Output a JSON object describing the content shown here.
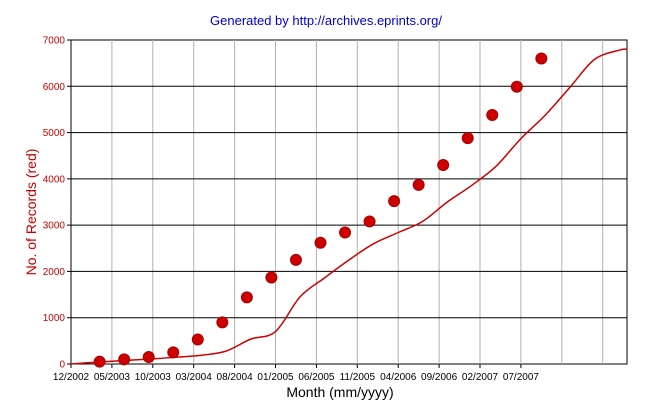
{
  "chart_data": {
    "type": "line",
    "title": "Generated by http://archives.eprints.org/",
    "xlabel": "Month (mm/yyyy)",
    "ylabel": "No. of Records (red)",
    "ylim": [
      0,
      7000
    ],
    "yticks": [
      0,
      1000,
      2000,
      3000,
      4000,
      5000,
      6000,
      7000
    ],
    "x_tick_labels": [
      "12/2002",
      "05/2003",
      "10/2003",
      "03/2004",
      "08/2004",
      "01/2005",
      "06/2005",
      "11/2005",
      "04/2006",
      "09/2006",
      "02/2007",
      "07/2007"
    ],
    "grid": true,
    "legend": "none",
    "line_color": "#cc0000",
    "marker_color": "#cc0000",
    "series": [
      {
        "curve": [
          [
            0,
            0
          ],
          [
            4.0,
            50
          ],
          [
            7.0,
            80
          ],
          [
            10.0,
            110
          ],
          [
            13.0,
            150
          ],
          [
            16.0,
            190
          ],
          [
            19.0,
            280
          ],
          [
            22.0,
            540
          ],
          [
            25.0,
            700
          ],
          [
            28.0,
            1450
          ],
          [
            31.0,
            1860
          ],
          [
            34.0,
            2250
          ],
          [
            37.0,
            2600
          ],
          [
            40.0,
            2840
          ],
          [
            43.0,
            3080
          ],
          [
            46.0,
            3500
          ],
          [
            49.0,
            3860
          ],
          [
            52.0,
            4280
          ],
          [
            55.0,
            4870
          ],
          [
            58.0,
            5380
          ],
          [
            61.0,
            5980
          ],
          [
            64.0,
            6580
          ],
          [
            67.0,
            6780
          ],
          [
            68.0,
            6800
          ]
        ],
        "markers": [
          [
            3.5,
            50
          ],
          [
            6.5,
            100
          ],
          [
            9.5,
            150
          ],
          [
            12.5,
            250
          ],
          [
            15.5,
            530
          ],
          [
            18.5,
            900
          ],
          [
            21.5,
            1440
          ],
          [
            24.5,
            1870
          ],
          [
            27.5,
            2250
          ],
          [
            30.5,
            2620
          ],
          [
            33.5,
            2840
          ],
          [
            36.5,
            3080
          ],
          [
            39.5,
            3520
          ],
          [
            42.5,
            3870
          ],
          [
            45.5,
            4300
          ],
          [
            48.5,
            4880
          ],
          [
            51.5,
            5380
          ],
          [
            54.5,
            5990
          ],
          [
            57.5,
            6600
          ]
        ]
      }
    ]
  }
}
